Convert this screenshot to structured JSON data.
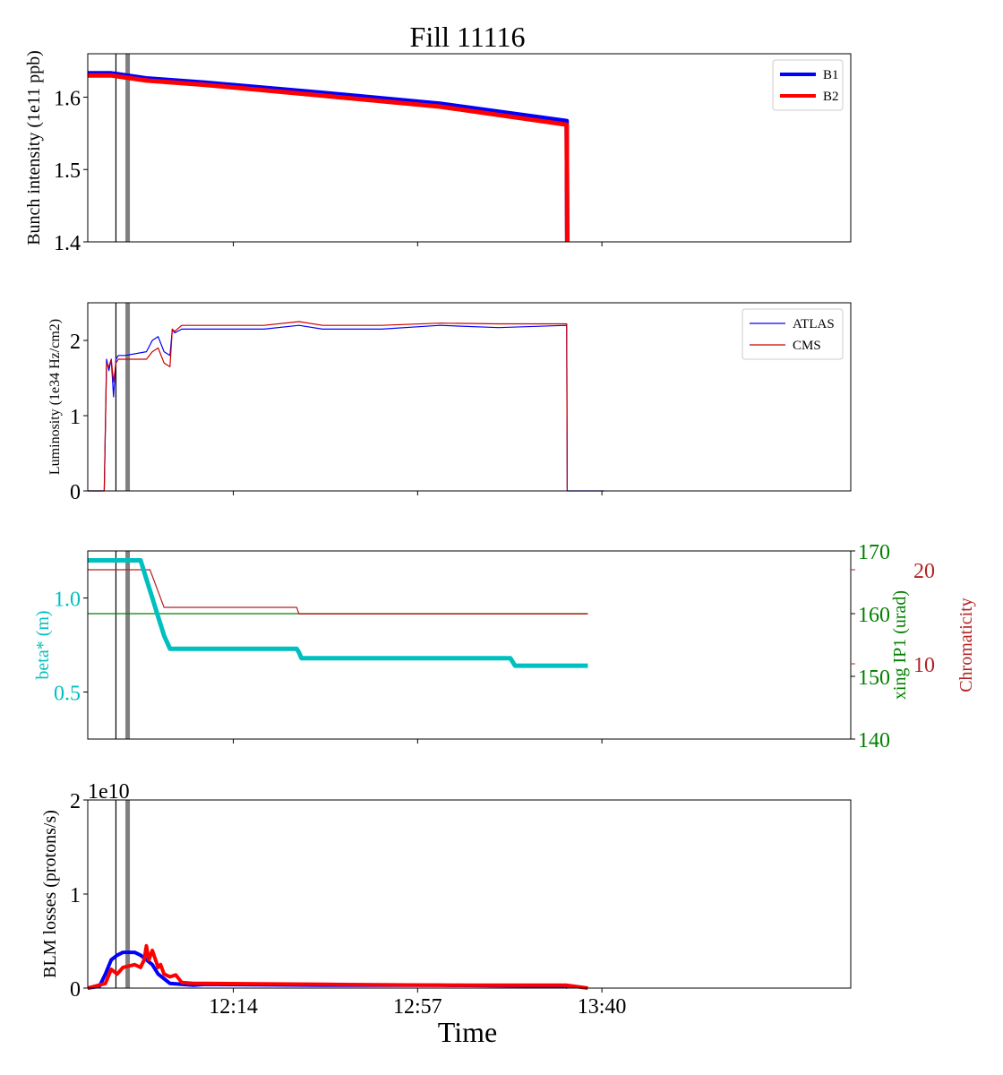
{
  "title": "Fill 11116",
  "xlabel": "Time",
  "x_ticks": [
    "12:14",
    "12:57",
    "13:40"
  ],
  "colors": {
    "b1": "#0000ff",
    "b2": "#ff0000",
    "atlas": "#0000ff",
    "cms": "#cc0000",
    "beta": "#00bfbf",
    "xing": "#008000",
    "chroma": "#b22222",
    "marker_thin": "#000000",
    "marker_thick": "#808080"
  },
  "chart_data": [
    {
      "type": "line",
      "ylabel": "Bunch intensity (1e11 ppb)",
      "ylim": [
        1.4,
        1.66
      ],
      "yticks": [
        "1.4",
        "1.5",
        "1.6"
      ],
      "legend": "top-right",
      "series": [
        {
          "name": "B1",
          "t": [
            0,
            20,
            50,
            100,
            200,
            300,
            408,
            408.5
          ],
          "values": [
            1.633,
            1.633,
            1.626,
            1.62,
            1.606,
            1.591,
            1.567,
            1.4
          ]
        },
        {
          "name": "B2",
          "t": [
            0,
            20,
            50,
            100,
            200,
            300,
            408,
            408.5
          ],
          "values": [
            1.63,
            1.63,
            1.623,
            1.617,
            1.602,
            1.587,
            1.562,
            1.4
          ]
        }
      ]
    },
    {
      "type": "line",
      "ylabel": "Luminosity (1e34 Hz/cm2)",
      "ylim": [
        0,
        2.5
      ],
      "yticks": [
        "0",
        "1",
        "2"
      ],
      "legend": "top-right",
      "series": [
        {
          "name": "ATLAS",
          "t": [
            0,
            14,
            16,
            18,
            20,
            22,
            24,
            26,
            28,
            32,
            50,
            55,
            60,
            65,
            70,
            72,
            74,
            80,
            150,
            180,
            200,
            250,
            300,
            350,
            408,
            408.5,
            440
          ],
          "values": [
            0,
            0,
            1.75,
            1.6,
            1.75,
            1.25,
            1.75,
            1.8,
            1.8,
            1.8,
            1.85,
            2.0,
            2.05,
            1.85,
            1.8,
            2.15,
            2.1,
            2.15,
            2.15,
            2.2,
            2.15,
            2.15,
            2.2,
            2.17,
            2.2,
            0,
            0
          ]
        },
        {
          "name": "CMS",
          "t": [
            0,
            14,
            16,
            18,
            20,
            22,
            24,
            26,
            28,
            32,
            50,
            55,
            60,
            65,
            70,
            72,
            74,
            80,
            150,
            180,
            200,
            250,
            300,
            350,
            408,
            408.5
          ],
          "values": [
            0,
            0,
            1.7,
            1.65,
            1.75,
            1.45,
            1.7,
            1.75,
            1.75,
            1.75,
            1.75,
            1.85,
            1.9,
            1.7,
            1.65,
            2.15,
            2.12,
            2.2,
            2.2,
            2.25,
            2.2,
            2.2,
            2.23,
            2.22,
            2.22,
            0
          ]
        }
      ]
    },
    {
      "type": "line",
      "ylabel": "beta* (m)",
      "ylim": [
        0.25,
        1.25
      ],
      "yticks": [
        "0.5",
        "1.0"
      ],
      "ylabel_right": "xing IP1 (urad)",
      "ylim_right": [
        140,
        170
      ],
      "yticks_right": [
        "140",
        "150",
        "160",
        "170"
      ],
      "ylabel_right2": "Chromaticity",
      "yticks_right2": [
        "10",
        "20"
      ],
      "series": [
        {
          "name": "beta*",
          "t": [
            0,
            45,
            50,
            55,
            60,
            65,
            70,
            75,
            178,
            180,
            182,
            360,
            362,
            364,
            426
          ],
          "values": [
            1.2,
            1.2,
            1.1,
            1.0,
            0.9,
            0.8,
            0.73,
            0.73,
            0.73,
            0.71,
            0.68,
            0.68,
            0.66,
            0.64,
            0.64
          ]
        },
        {
          "name": "xing IP1",
          "t": [
            0,
            426
          ],
          "values": [
            160,
            160
          ]
        },
        {
          "name": "Chromaticity",
          "t": [
            0,
            53,
            65,
            178,
            180,
            426
          ],
          "values": [
            20,
            20,
            16,
            16,
            15.3,
            15.3
          ]
        }
      ]
    },
    {
      "type": "line",
      "ylabel": "BLM losses (protons/s)",
      "offset_label": "1e10",
      "ylim": [
        0,
        2
      ],
      "yticks": [
        "0",
        "1",
        "2"
      ],
      "series": [
        {
          "name": "B1",
          "t": [
            0,
            10,
            15,
            20,
            25,
            30,
            40,
            45,
            50,
            55,
            60,
            65,
            70,
            80,
            90,
            100,
            200,
            300,
            408,
            409
          ],
          "values": [
            0,
            0.02,
            0.15,
            0.3,
            0.35,
            0.38,
            0.38,
            0.35,
            0.3,
            0.25,
            0.15,
            0.1,
            0.05,
            0.04,
            0.03,
            0.04,
            0.03,
            0.03,
            0.02,
            0
          ]
        },
        {
          "name": "B2",
          "t": [
            0,
            15,
            20,
            25,
            30,
            40,
            45,
            48,
            50,
            52,
            55,
            60,
            62,
            65,
            70,
            75,
            80,
            90,
            100,
            200,
            300,
            408,
            426
          ],
          "values": [
            0,
            0.05,
            0.2,
            0.15,
            0.22,
            0.25,
            0.22,
            0.3,
            0.45,
            0.3,
            0.4,
            0.22,
            0.25,
            0.15,
            0.12,
            0.14,
            0.06,
            0.05,
            0.05,
            0.04,
            0.03,
            0.03,
            0
          ]
        }
      ]
    }
  ]
}
